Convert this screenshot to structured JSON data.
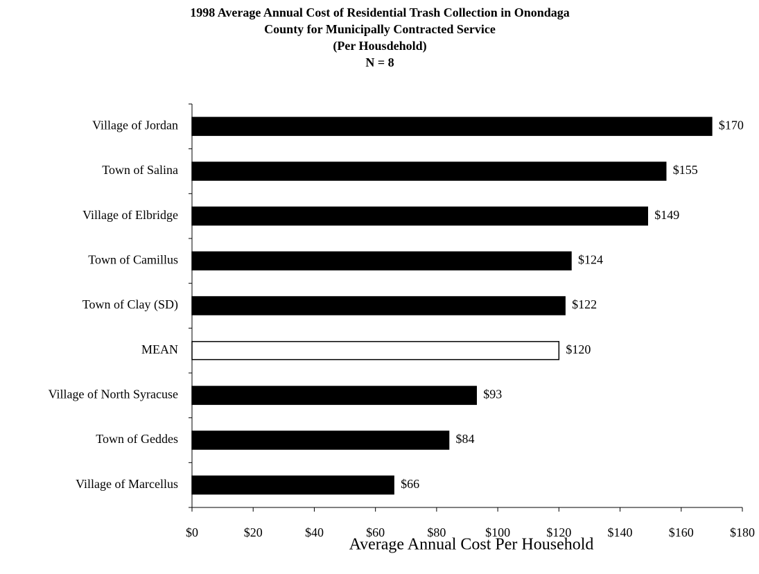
{
  "chart_data": {
    "type": "barh",
    "title": [
      "1998 Average Annual Cost of Residential Trash Collection in Onondaga",
      "County for Municipally Contracted Service",
      "(Per Housdehold)",
      "N = 8"
    ],
    "x_label": "Average Annual Cost Per Household",
    "categories": [
      "Village of Jordan",
      "Town of Salina",
      "Village of Elbridge",
      "Town of Camillus",
      "Town of Clay (SD)",
      "MEAN",
      "Village of North Syracuse",
      "Town of Geddes",
      "Village of Marcellus"
    ],
    "values": [
      170,
      155,
      149,
      124,
      122,
      120,
      93,
      84,
      66
    ],
    "value_labels": [
      "$170",
      "$155",
      "$149",
      "$124",
      "$122",
      "$120",
      "$93",
      "$84",
      "$66"
    ],
    "colors": [
      "#000000",
      "#000000",
      "#000000",
      "#000000",
      "#000000",
      "#ffffff",
      "#000000",
      "#000000",
      "#000000"
    ],
    "xlim": [
      0,
      180
    ],
    "xticks": [
      {
        "value": 0,
        "label": "$0"
      },
      {
        "value": 20,
        "label": "$20"
      },
      {
        "value": 40,
        "label": "$40"
      },
      {
        "value": 60,
        "label": "$60"
      },
      {
        "value": 80,
        "label": "$80"
      },
      {
        "value": 100,
        "label": "$100"
      },
      {
        "value": 120,
        "label": "$120"
      },
      {
        "value": 140,
        "label": "$140"
      },
      {
        "value": 160,
        "label": "$160"
      },
      {
        "value": 180,
        "label": "$180"
      }
    ],
    "grid": false
  }
}
